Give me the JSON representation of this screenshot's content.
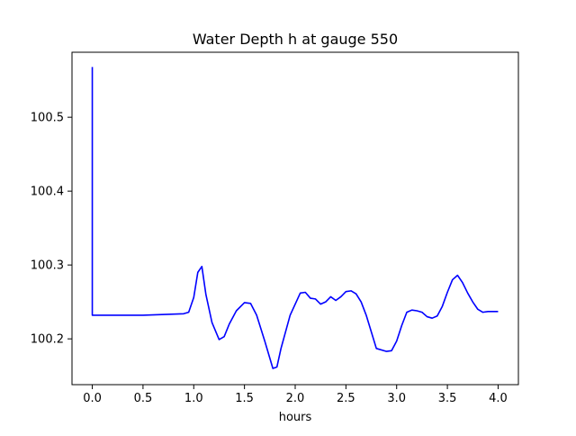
{
  "chart_data": {
    "type": "line",
    "title": "Water Depth h at gauge 550",
    "xlabel": "hours",
    "ylabel": "",
    "xlim": [
      -0.2,
      4.2
    ],
    "ylim": [
      100.138,
      100.588
    ],
    "xticks": [
      0.0,
      0.5,
      1.0,
      1.5,
      2.0,
      2.5,
      3.0,
      3.5,
      4.0
    ],
    "xtick_labels": [
      "0.0",
      "0.5",
      "1.0",
      "1.5",
      "2.0",
      "2.5",
      "3.0",
      "3.5",
      "4.0"
    ],
    "yticks": [
      100.2,
      100.3,
      100.4,
      100.5
    ],
    "ytick_labels": [
      "100.2",
      "100.3",
      "100.4",
      "100.5"
    ],
    "grid": false,
    "series": [
      {
        "color": "#0000ff",
        "x": [
          0.0,
          0.0,
          0.0,
          0.5,
          0.9,
          0.95,
          1.0,
          1.04,
          1.08,
          1.12,
          1.18,
          1.25,
          1.3,
          1.35,
          1.42,
          1.5,
          1.56,
          1.62,
          1.7,
          1.78,
          1.82,
          1.86,
          1.95,
          2.05,
          2.1,
          2.15,
          2.2,
          2.25,
          2.3,
          2.35,
          2.4,
          2.45,
          2.5,
          2.55,
          2.6,
          2.65,
          2.7,
          2.8,
          2.9,
          2.95,
          3.0,
          3.05,
          3.1,
          3.15,
          3.2,
          3.25,
          3.3,
          3.35,
          3.4,
          3.45,
          3.5,
          3.55,
          3.6,
          3.65,
          3.7,
          3.75,
          3.8,
          3.85,
          3.9,
          3.95,
          4.0
        ],
        "y": [
          100.568,
          100.568,
          100.232,
          100.232,
          100.234,
          100.236,
          100.256,
          100.29,
          100.298,
          100.26,
          100.222,
          100.199,
          100.203,
          100.22,
          100.238,
          100.249,
          100.248,
          100.232,
          100.197,
          100.16,
          100.162,
          100.187,
          100.232,
          100.262,
          100.263,
          100.255,
          100.254,
          100.247,
          100.25,
          100.257,
          100.252,
          100.257,
          100.264,
          100.265,
          100.261,
          100.25,
          100.232,
          100.187,
          100.183,
          100.184,
          100.197,
          100.218,
          100.236,
          100.239,
          100.238,
          100.236,
          100.23,
          100.228,
          100.231,
          100.244,
          100.263,
          100.28,
          100.286,
          100.276,
          100.262,
          100.25,
          100.24,
          100.236,
          100.237,
          100.237,
          100.237
        ]
      }
    ]
  }
}
